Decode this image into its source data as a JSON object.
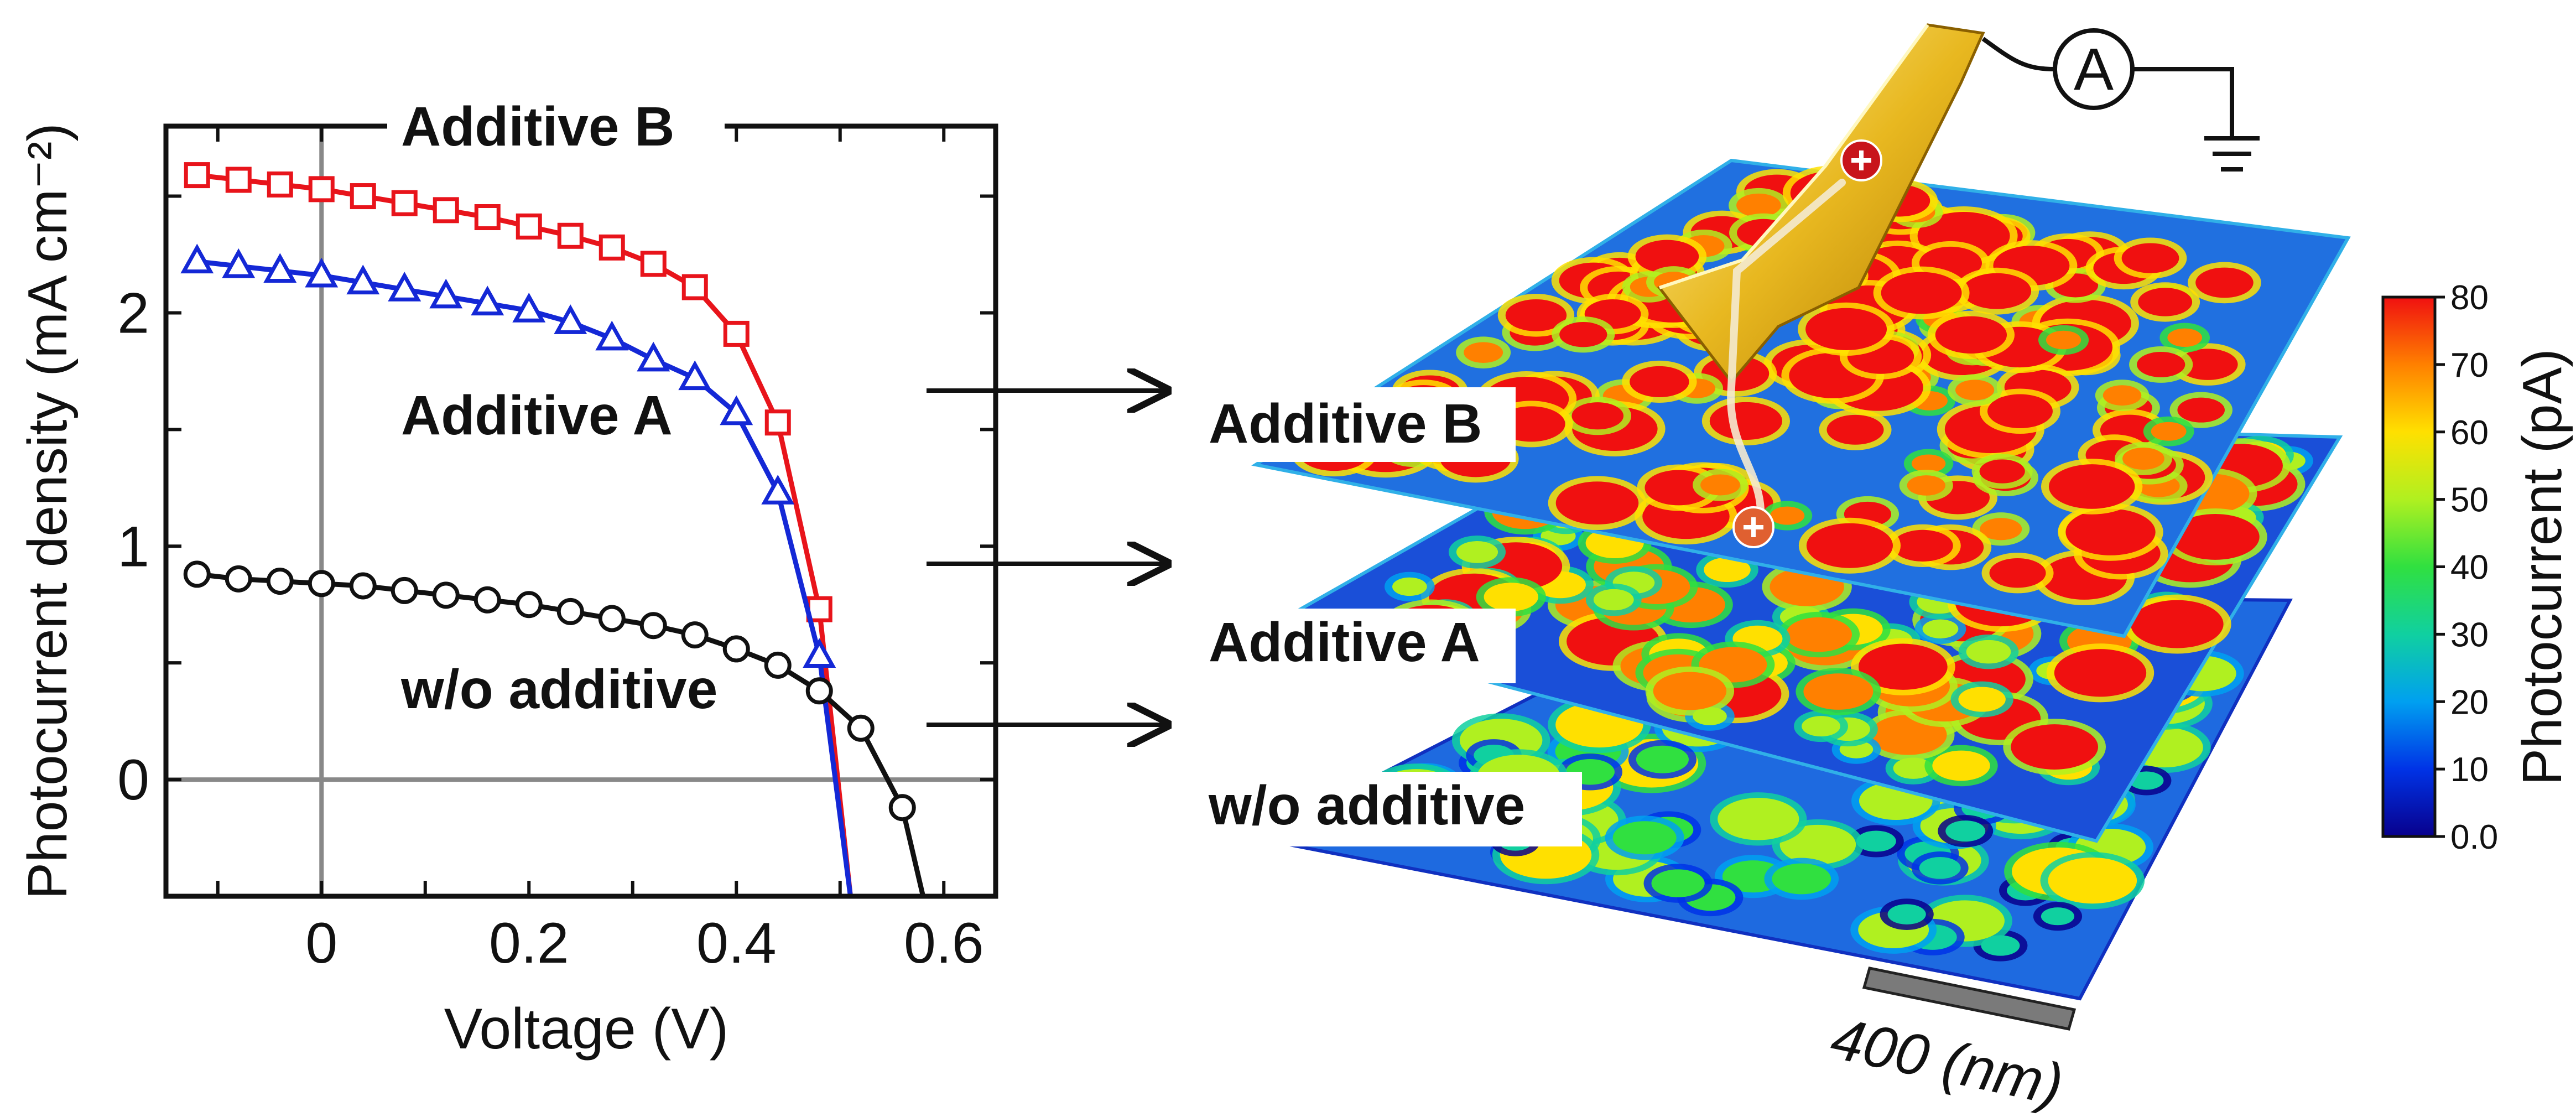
{
  "chart_data": [
    {
      "type": "line",
      "title": "",
      "xlabel": "Voltage (V)",
      "ylabel": "Photocurrent density (mA cm⁻²)",
      "xlim": [
        -0.15,
        0.65
      ],
      "ylim": [
        -0.5,
        2.8
      ],
      "x_ticks": [
        0,
        0.2,
        0.4,
        0.6
      ],
      "x_tick_labels": [
        "0",
        "0.2",
        "0.4",
        "0.6"
      ],
      "y_ticks": [
        0,
        1,
        2
      ],
      "y_tick_labels": [
        "0",
        "1",
        "2"
      ],
      "grid": false,
      "reference_lines": {
        "x": 0,
        "y": 0,
        "color": "#888888"
      },
      "series": [
        {
          "name": "Additive B",
          "color": "#e8141b",
          "marker": "square",
          "x": [
            -0.12,
            -0.08,
            -0.04,
            0.0,
            0.04,
            0.08,
            0.12,
            0.16,
            0.2,
            0.24,
            0.28,
            0.32,
            0.36,
            0.4,
            0.44,
            0.48
          ],
          "y": [
            2.59,
            2.57,
            2.55,
            2.53,
            2.5,
            2.47,
            2.44,
            2.41,
            2.37,
            2.33,
            2.28,
            2.21,
            2.11,
            1.91,
            1.53,
            0.73
          ],
          "tail": {
            "x": [
              0.48,
              0.51
            ],
            "y": [
              0.73,
              -0.5
            ]
          }
        },
        {
          "name": "Additive A",
          "color": "#1428d6",
          "marker": "triangle",
          "x": [
            -0.12,
            -0.08,
            -0.04,
            0.0,
            0.04,
            0.08,
            0.12,
            0.16,
            0.2,
            0.24,
            0.28,
            0.32,
            0.36,
            0.4,
            0.44,
            0.48
          ],
          "y": [
            2.22,
            2.2,
            2.18,
            2.16,
            2.13,
            2.1,
            2.07,
            2.04,
            2.01,
            1.96,
            1.89,
            1.8,
            1.72,
            1.57,
            1.23,
            0.53
          ],
          "tail": {
            "x": [
              0.48,
              0.51
            ],
            "y": [
              0.53,
              -0.5
            ]
          }
        },
        {
          "name": "w/o additive",
          "color": "#111111",
          "marker": "circle",
          "x": [
            -0.12,
            -0.08,
            -0.04,
            0.0,
            0.04,
            0.08,
            0.12,
            0.16,
            0.2,
            0.24,
            0.28,
            0.32,
            0.36,
            0.4,
            0.44,
            0.48,
            0.52,
            0.56
          ],
          "y": [
            0.88,
            0.86,
            0.85,
            0.84,
            0.83,
            0.81,
            0.79,
            0.77,
            0.75,
            0.72,
            0.69,
            0.66,
            0.62,
            0.56,
            0.49,
            0.38,
            0.22,
            -0.12
          ],
          "tail": {
            "x": [
              0.56,
              0.58
            ],
            "y": [
              -0.12,
              -0.5
            ]
          }
        }
      ]
    },
    {
      "type": "heatmap",
      "colorbar": {
        "label": "Photocurrent (pA)",
        "min": 0,
        "max": 80,
        "ticks": [
          0,
          10,
          20,
          30,
          40,
          50,
          60,
          70,
          80
        ],
        "tick_labels": [
          "0.0",
          "10",
          "20",
          "30",
          "40",
          "50",
          "60",
          "70",
          "80"
        ],
        "colors": [
          "#08008c",
          "#0033e6",
          "#00a0f0",
          "#10d0a0",
          "#30e040",
          "#b0f020",
          "#ffe000",
          "#ff8000",
          "#f01010"
        ]
      },
      "layers": [
        {
          "name": "Additive B",
          "color_level": 60
        },
        {
          "name": "Additive A",
          "color_level": 40
        },
        {
          "name": "w/o additive",
          "color_level": 18
        }
      ],
      "scale_bar": {
        "label": "400 (nm)"
      },
      "ammeter_label": "A"
    }
  ]
}
